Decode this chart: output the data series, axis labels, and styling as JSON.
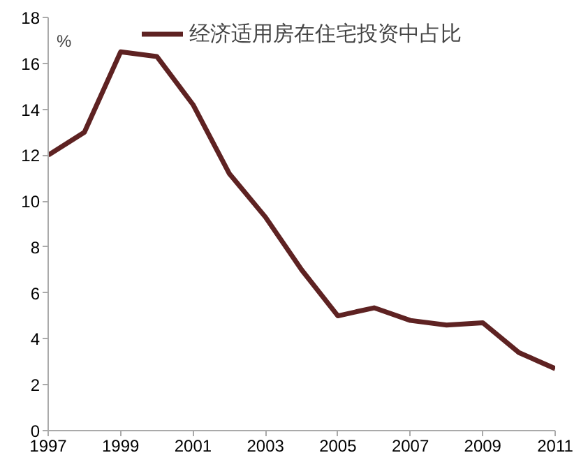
{
  "chart_data": {
    "type": "line",
    "ylabel": "%",
    "x": [
      1997,
      1998,
      1999,
      2000,
      2001,
      2002,
      2003,
      2004,
      2005,
      2006,
      2007,
      2008,
      2009,
      2010,
      2011
    ],
    "series": [
      {
        "name": "经济适用房在住宅投资中占比",
        "color": "#5e2222",
        "values": [
          12.0,
          13.0,
          16.5,
          16.3,
          14.2,
          11.2,
          9.3,
          7.0,
          5.0,
          5.35,
          4.8,
          4.6,
          4.7,
          3.4,
          2.7
        ]
      }
    ],
    "xlim": [
      1997,
      2011
    ],
    "xticks": [
      1997,
      1999,
      2001,
      2003,
      2005,
      2007,
      2009,
      2011
    ],
    "ylim": [
      0,
      18
    ],
    "yticks": [
      0,
      2,
      4,
      6,
      8,
      10,
      12,
      14,
      16,
      18
    ],
    "grid": false,
    "legend": "top",
    "marker": "none",
    "line_style": "solid"
  }
}
